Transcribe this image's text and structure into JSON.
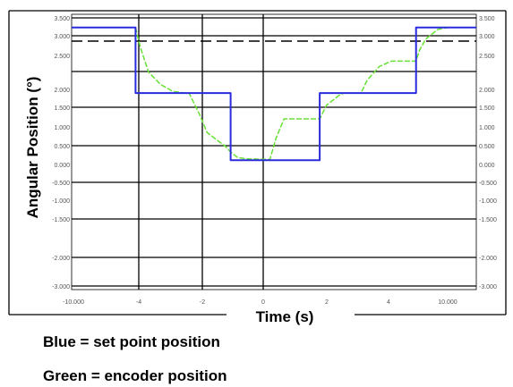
{
  "chart_data": {
    "type": "line",
    "xlabel": "Time (s)",
    "ylabel": "Angular Position (°)",
    "xlim": [
      0,
      1
    ],
    "ylim": [
      0,
      1
    ],
    "grid": true,
    "y_left_tick_labels": [
      "3.500",
      "3.000",
      "2.500",
      "2.000",
      "1.500",
      "1.000",
      "0.500",
      "0.000",
      "-0.500",
      "-1.000",
      "-1.500",
      "-2.000",
      "-3.000"
    ],
    "y_right_tick_labels": [
      "3.500",
      "3.000",
      "2.500",
      "2.000",
      "1.500",
      "1.000",
      "0.500",
      "0.000",
      "-0.500",
      "-1.000",
      "-1.500",
      "-2.000",
      "-3.000"
    ],
    "x_tick_labels": [
      "-10.000",
      "-4",
      "-2",
      "0",
      "2",
      "4",
      "10.000"
    ],
    "series": [
      {
        "name": "set point",
        "color": "#2b2bde",
        "x": [
          0.0,
          0.158,
          0.158,
          0.393,
          0.393,
          0.613,
          0.613,
          0.851,
          0.851,
          1.0
        ],
        "y": [
          0.952,
          0.952,
          0.714,
          0.714,
          0.47,
          0.47,
          0.714,
          0.714,
          0.952,
          0.952
        ]
      },
      {
        "name": "encoder",
        "color": "#66e033",
        "x": [
          0.158,
          0.17,
          0.19,
          0.22,
          0.25,
          0.28,
          0.29,
          0.315,
          0.335,
          0.38,
          0.393,
          0.41,
          0.43,
          0.49,
          0.505,
          0.525,
          0.53,
          0.613,
          0.63,
          0.665,
          0.675,
          0.715,
          0.73,
          0.76,
          0.79,
          0.851,
          0.86,
          0.875,
          0.905,
          0.93,
          0.96
        ],
        "y": [
          0.952,
          0.88,
          0.79,
          0.745,
          0.72,
          0.714,
          0.714,
          0.64,
          0.57,
          0.52,
          0.5,
          0.48,
          0.475,
          0.473,
          0.55,
          0.62,
          0.62,
          0.62,
          0.67,
          0.71,
          0.714,
          0.714,
          0.76,
          0.81,
          0.83,
          0.83,
          0.87,
          0.91,
          0.945,
          0.952,
          0.952
        ]
      }
    ]
  },
  "captions": {
    "blue": "Blue = set point position",
    "green": "Green = encoder position"
  }
}
